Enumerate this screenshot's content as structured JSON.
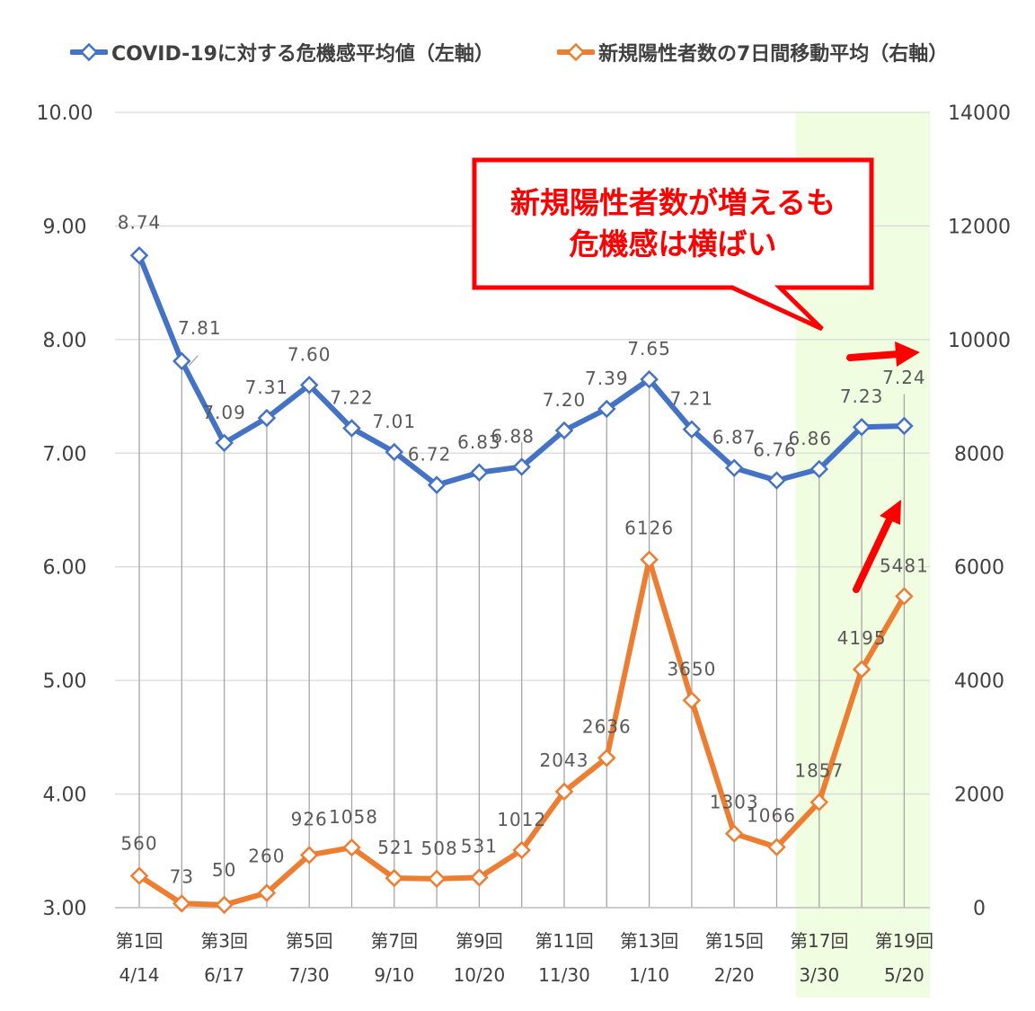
{
  "legend": {
    "items": [
      {
        "label": "COVID-19に対する危機感平均値（左軸）",
        "color": "#4472c4"
      },
      {
        "label": "新規陽性者数の7日間移動平均（右軸）",
        "color": "#ed7d31"
      }
    ]
  },
  "callout": {
    "line1": "新規陽性者数が増えるも",
    "line2": "危機感は横ばい",
    "color": "#ff0000"
  },
  "chart_data": {
    "type": "line",
    "highlight_range": {
      "from": "第17回",
      "to": "第19回",
      "color": "#f0fde0"
    },
    "x_labels": [
      {
        "top": "第1回",
        "bottom": "4/14"
      },
      {
        "top": "",
        "bottom": ""
      },
      {
        "top": "第3回",
        "bottom": "6/17"
      },
      {
        "top": "",
        "bottom": ""
      },
      {
        "top": "第5回",
        "bottom": "7/30"
      },
      {
        "top": "",
        "bottom": ""
      },
      {
        "top": "第7回",
        "bottom": "9/10"
      },
      {
        "top": "",
        "bottom": ""
      },
      {
        "top": "第9回",
        "bottom": "10/20"
      },
      {
        "top": "",
        "bottom": ""
      },
      {
        "top": "第11回",
        "bottom": "11/30"
      },
      {
        "top": "",
        "bottom": ""
      },
      {
        "top": "第13回",
        "bottom": "1/10"
      },
      {
        "top": "",
        "bottom": ""
      },
      {
        "top": "第15回",
        "bottom": "2/20"
      },
      {
        "top": "",
        "bottom": ""
      },
      {
        "top": "第17回",
        "bottom": "3/30"
      },
      {
        "top": "",
        "bottom": ""
      },
      {
        "top": "第19回",
        "bottom": "5/20"
      }
    ],
    "left_axis": {
      "min": 3.0,
      "max": 10.0,
      "ticks": [
        "3.00",
        "4.00",
        "5.00",
        "6.00",
        "7.00",
        "8.00",
        "9.00",
        "10.00"
      ]
    },
    "right_axis": {
      "min": 0,
      "max": 14000,
      "ticks": [
        "0",
        "2000",
        "4000",
        "6000",
        "8000",
        "10000",
        "12000",
        "14000"
      ]
    },
    "grid": true,
    "legend_position": "top",
    "series": [
      {
        "name": "COVID-19に対する危機感平均値（左軸）",
        "axis": "left",
        "color": "#4472c4",
        "values": [
          8.74,
          7.81,
          7.09,
          7.31,
          7.6,
          7.22,
          7.01,
          6.72,
          6.83,
          6.88,
          7.2,
          7.39,
          7.65,
          7.21,
          6.87,
          6.76,
          6.86,
          7.23,
          7.24
        ],
        "labels": [
          "8.74",
          "7.81",
          "7.09",
          "7.31",
          "7.60",
          "7.22",
          "7.01",
          "6.72",
          "6.83",
          "6.88",
          "7.20",
          "7.39",
          "7.65",
          "7.21",
          "6.87",
          "6.76",
          "6.86",
          "7.23",
          "7.24"
        ]
      },
      {
        "name": "新規陽性者数の7日間移動平均（右軸）",
        "axis": "right",
        "color": "#ed7d31",
        "values": [
          560,
          73,
          50,
          260,
          926,
          1058,
          521,
          508,
          531,
          1012,
          2043,
          2636,
          6126,
          3650,
          1303,
          1066,
          1857,
          4195,
          5481
        ],
        "labels": [
          "560",
          "73",
          "50",
          "260",
          "926",
          "1058",
          "521",
          "508",
          "531",
          "1012",
          "2043",
          "2636",
          "6126",
          "3650",
          "1303",
          "1066",
          "1857",
          "4195",
          "5481"
        ]
      }
    ]
  }
}
